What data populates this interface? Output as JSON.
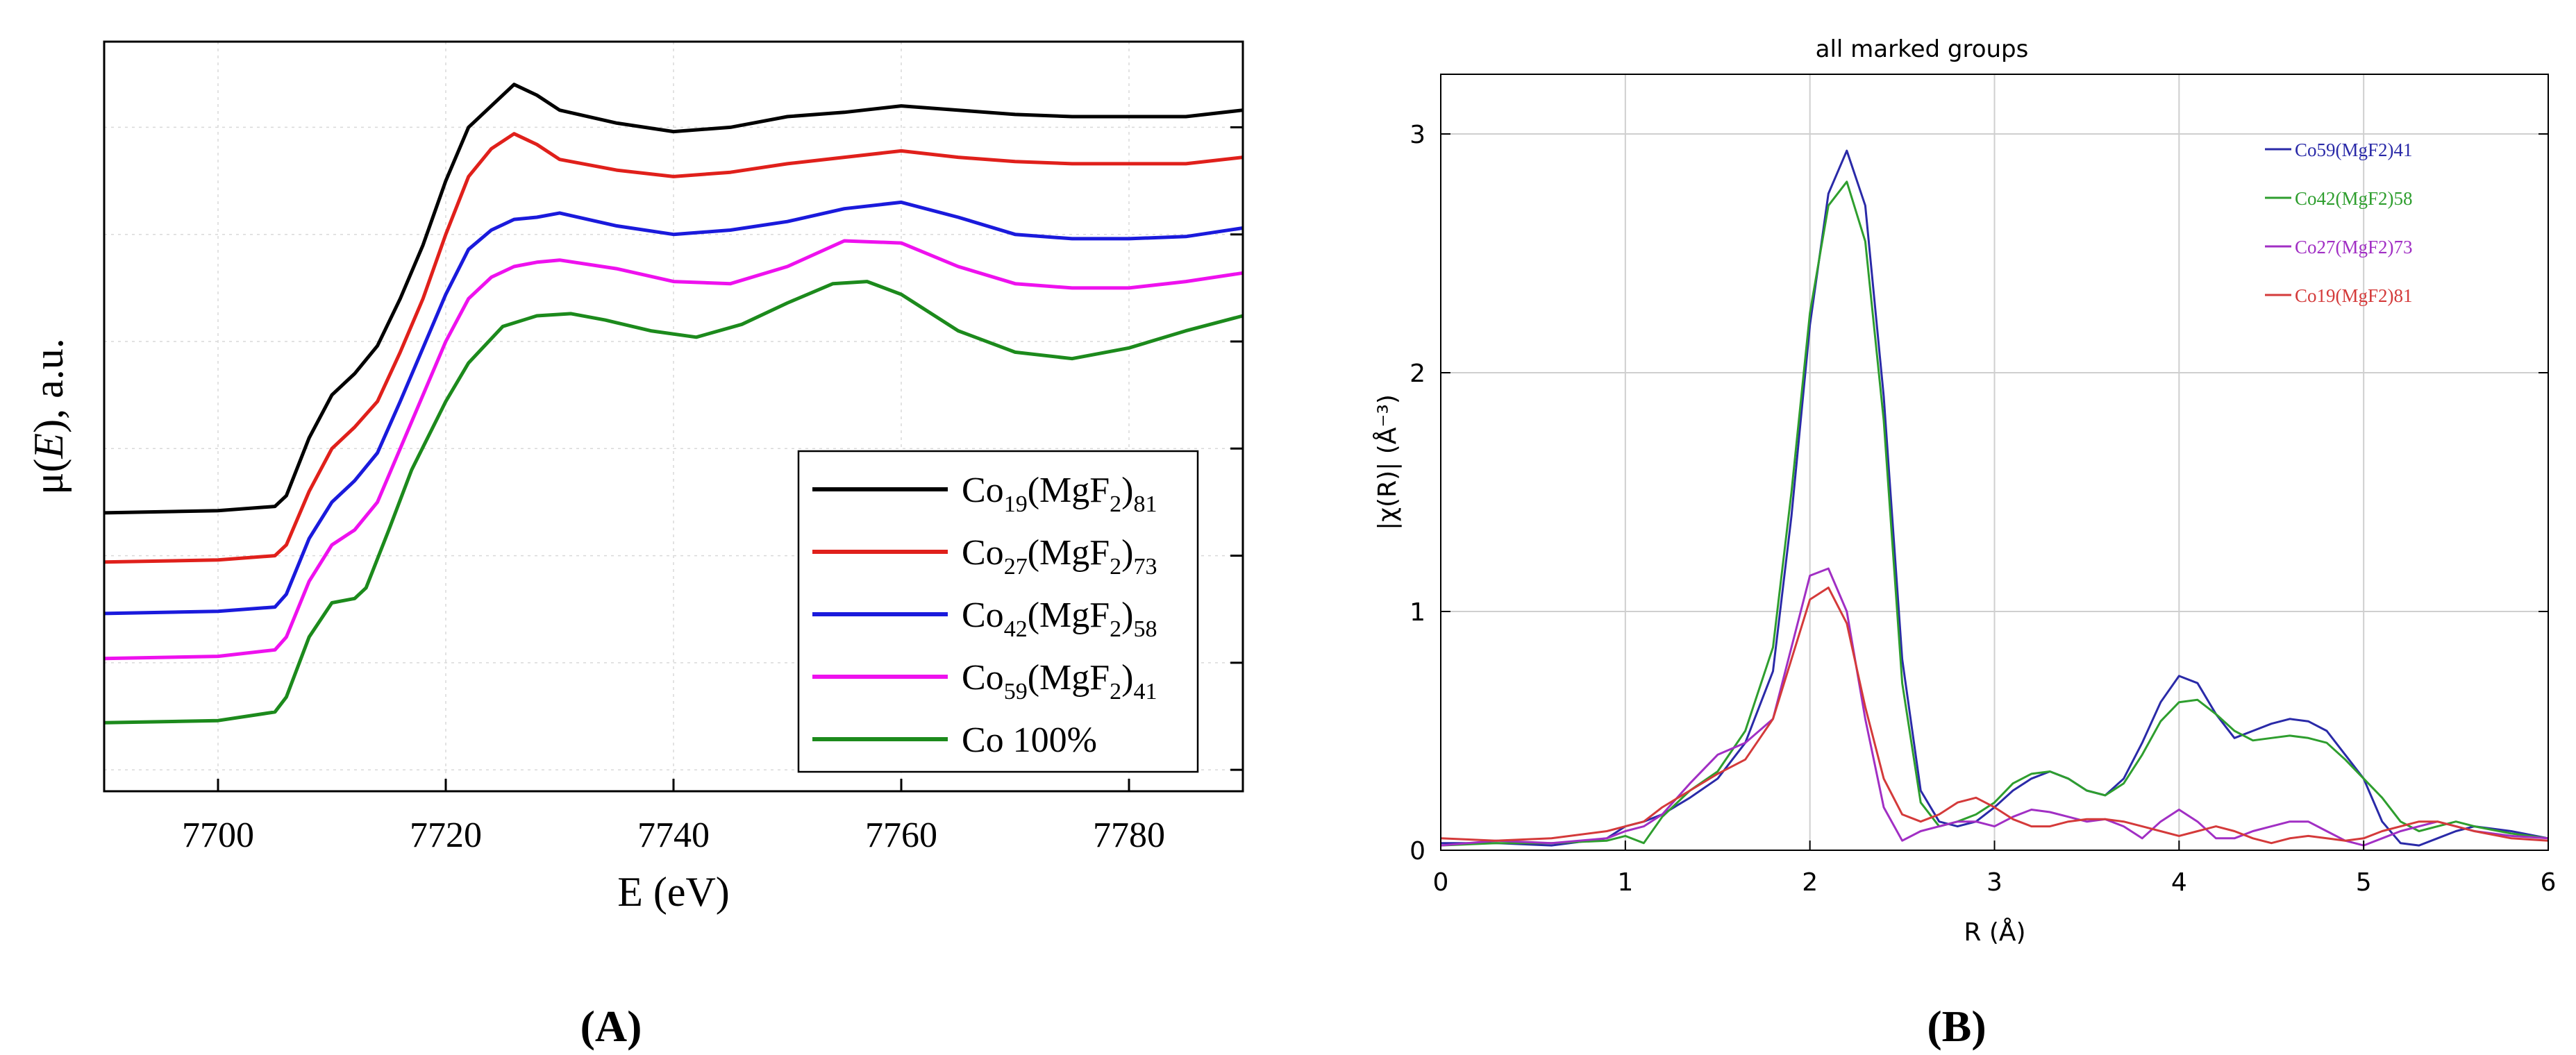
{
  "chart_data": [
    {
      "type": "line",
      "panel_label": "(A)",
      "panel_letter": "A",
      "title": "",
      "xlabel": "E (eV)",
      "ylabel_prefix": "μ(",
      "ylabel_italic": "E",
      "ylabel_suffix": "), a.u.",
      "xlim": [
        7690,
        7790
      ],
      "ylim": [
        -0.1,
        3.4
      ],
      "grid": true,
      "legend_position": "bottom-right",
      "x_ticks": [
        7700,
        7720,
        7740,
        7760,
        7780
      ],
      "x_tick_labels": [
        "7700",
        "7720",
        "7740",
        "7760",
        "7780"
      ],
      "y_ticks": [
        0.0,
        0.5,
        1.0,
        1.5,
        2.0,
        2.5,
        3.0
      ],
      "y_tick_labels": [
        "",
        "",
        "",
        "",
        "",
        "",
        ""
      ],
      "series": [
        {
          "name": "Co19(MgF2)81",
          "legend_base": "Co",
          "legend_sub1": "19",
          "legend_mid": "(MgF",
          "legend_sub2": "2",
          "legend_close": ")",
          "legend_sub3": "81",
          "color": "#000000",
          "x": [
            7690,
            7700,
            7705,
            7706,
            7708,
            7710,
            7712,
            7714,
            7716,
            7718,
            7720,
            7722,
            7724,
            7726,
            7728,
            7730,
            7735,
            7740,
            7745,
            7750,
            7755,
            7760,
            7765,
            7770,
            7775,
            7780,
            7785,
            7790
          ],
          "y": [
            1.2,
            1.21,
            1.23,
            1.28,
            1.55,
            1.75,
            1.85,
            1.98,
            2.2,
            2.45,
            2.75,
            3.0,
            3.1,
            3.2,
            3.15,
            3.08,
            3.02,
            2.98,
            3.0,
            3.05,
            3.07,
            3.1,
            3.08,
            3.06,
            3.05,
            3.05,
            3.05,
            3.08
          ]
        },
        {
          "name": "Co27(MgF2)73",
          "legend_base": "Co",
          "legend_sub1": "27",
          "legend_mid": "(MgF",
          "legend_sub2": "2",
          "legend_close": ")",
          "legend_sub3": "73",
          "color": "#e0201b",
          "x": [
            7690,
            7700,
            7705,
            7706,
            7708,
            7710,
            7712,
            7714,
            7716,
            7718,
            7720,
            7722,
            7724,
            7726,
            7728,
            7730,
            7735,
            7740,
            7745,
            7750,
            7755,
            7760,
            7765,
            7770,
            7775,
            7780,
            7785,
            7790
          ],
          "y": [
            0.97,
            0.98,
            1.0,
            1.05,
            1.3,
            1.5,
            1.6,
            1.72,
            1.95,
            2.2,
            2.5,
            2.77,
            2.9,
            2.97,
            2.92,
            2.85,
            2.8,
            2.77,
            2.79,
            2.83,
            2.86,
            2.89,
            2.86,
            2.84,
            2.83,
            2.83,
            2.83,
            2.86
          ]
        },
        {
          "name": "Co42(MgF2)58",
          "legend_base": "Co",
          "legend_sub1": "42",
          "legend_mid": "(MgF",
          "legend_sub2": "2",
          "legend_close": ")",
          "legend_sub3": "58",
          "color": "#1a1adc",
          "x": [
            7690,
            7700,
            7705,
            7706,
            7708,
            7710,
            7712,
            7714,
            7716,
            7718,
            7720,
            7722,
            7724,
            7726,
            7728,
            7730,
            7735,
            7740,
            7745,
            7750,
            7755,
            7760,
            7765,
            7770,
            7775,
            7780,
            7785,
            7790
          ],
          "y": [
            0.73,
            0.74,
            0.76,
            0.82,
            1.08,
            1.25,
            1.35,
            1.48,
            1.72,
            1.97,
            2.22,
            2.43,
            2.52,
            2.57,
            2.58,
            2.6,
            2.54,
            2.5,
            2.52,
            2.56,
            2.62,
            2.65,
            2.58,
            2.5,
            2.48,
            2.48,
            2.49,
            2.53
          ]
        },
        {
          "name": "Co59(MgF2)41",
          "legend_base": "Co",
          "legend_sub1": "59",
          "legend_mid": "(MgF",
          "legend_sub2": "2",
          "legend_close": ")",
          "legend_sub3": "41",
          "color": "#ee11ee",
          "x": [
            7690,
            7700,
            7705,
            7706,
            7708,
            7710,
            7712,
            7714,
            7716,
            7718,
            7720,
            7722,
            7724,
            7726,
            7728,
            7730,
            7735,
            7740,
            7745,
            7750,
            7755,
            7760,
            7765,
            7770,
            7775,
            7780,
            7785,
            7790
          ],
          "y": [
            0.52,
            0.53,
            0.56,
            0.62,
            0.88,
            1.05,
            1.12,
            1.25,
            1.5,
            1.75,
            2.0,
            2.2,
            2.3,
            2.35,
            2.37,
            2.38,
            2.34,
            2.28,
            2.27,
            2.35,
            2.47,
            2.46,
            2.35,
            2.27,
            2.25,
            2.25,
            2.28,
            2.32
          ]
        },
        {
          "name": "Co 100%",
          "legend_base": "Co 100%",
          "legend_sub1": "",
          "legend_mid": "",
          "legend_sub2": "",
          "legend_close": "",
          "legend_sub3": "",
          "color": "#1c8a1c",
          "x": [
            7690,
            7700,
            7705,
            7706,
            7708,
            7710,
            7712,
            7713,
            7715,
            7717,
            7720,
            7722,
            7725,
            7728,
            7731,
            7734,
            7738,
            7742,
            7746,
            7750,
            7754,
            7757,
            7760,
            7765,
            7770,
            7775,
            7780,
            7785,
            7790
          ],
          "y": [
            0.22,
            0.23,
            0.27,
            0.34,
            0.62,
            0.78,
            0.8,
            0.85,
            1.12,
            1.4,
            1.72,
            1.9,
            2.07,
            2.12,
            2.13,
            2.1,
            2.05,
            2.02,
            2.08,
            2.18,
            2.27,
            2.28,
            2.22,
            2.05,
            1.95,
            1.92,
            1.97,
            2.05,
            2.12
          ]
        }
      ]
    },
    {
      "type": "line",
      "panel_label": "(B)",
      "panel_letter": "B",
      "title": "all marked groups",
      "xlabel": "R (Å)",
      "ylabel": "|χ(R)| (Å⁻³)",
      "xlim": [
        0,
        6
      ],
      "ylim": [
        0,
        3.25
      ],
      "grid": true,
      "legend_position": "top-right",
      "x_ticks": [
        0,
        1,
        2,
        3,
        4,
        5,
        6
      ],
      "x_tick_labels": [
        "0",
        "1",
        "2",
        "3",
        "4",
        "5",
        "6"
      ],
      "y_ticks": [
        0,
        1,
        2,
        3
      ],
      "y_tick_labels": [
        "0",
        "1",
        "2",
        "3"
      ],
      "series": [
        {
          "name": "Co59(MgF2)41",
          "color": "#2a2aa8",
          "x": [
            0,
            0.3,
            0.6,
            0.9,
            1.0,
            1.1,
            1.2,
            1.35,
            1.5,
            1.65,
            1.8,
            1.9,
            2.0,
            2.1,
            2.2,
            2.3,
            2.4,
            2.5,
            2.6,
            2.7,
            2.8,
            2.9,
            3.0,
            3.1,
            3.2,
            3.3,
            3.4,
            3.5,
            3.6,
            3.7,
            3.8,
            3.9,
            4.0,
            4.1,
            4.2,
            4.3,
            4.4,
            4.5,
            4.6,
            4.7,
            4.8,
            4.9,
            5.0,
            5.1,
            5.2,
            5.3,
            5.4,
            5.5,
            5.6,
            5.8,
            6.0
          ],
          "y": [
            0.03,
            0.03,
            0.02,
            0.05,
            0.1,
            0.12,
            0.15,
            0.22,
            0.3,
            0.45,
            0.75,
            1.4,
            2.2,
            2.75,
            2.93,
            2.7,
            1.9,
            0.8,
            0.25,
            0.12,
            0.1,
            0.12,
            0.18,
            0.25,
            0.3,
            0.33,
            0.3,
            0.25,
            0.23,
            0.3,
            0.45,
            0.62,
            0.73,
            0.7,
            0.57,
            0.47,
            0.5,
            0.53,
            0.55,
            0.54,
            0.5,
            0.4,
            0.3,
            0.12,
            0.03,
            0.02,
            0.05,
            0.08,
            0.1,
            0.08,
            0.05
          ]
        },
        {
          "name": "Co42(MgF2)58",
          "color": "#2e9e2e",
          "x": [
            0,
            0.3,
            0.6,
            0.9,
            1.0,
            1.1,
            1.2,
            1.35,
            1.5,
            1.65,
            1.8,
            1.9,
            2.0,
            2.1,
            2.2,
            2.3,
            2.4,
            2.5,
            2.6,
            2.7,
            2.8,
            2.9,
            3.0,
            3.1,
            3.2,
            3.3,
            3.4,
            3.5,
            3.6,
            3.7,
            3.8,
            3.9,
            4.0,
            4.1,
            4.2,
            4.3,
            4.4,
            4.5,
            4.6,
            4.7,
            4.8,
            4.9,
            5.0,
            5.1,
            5.2,
            5.3,
            5.4,
            5.5,
            5.6,
            5.8,
            6.0
          ],
          "y": [
            0.02,
            0.03,
            0.03,
            0.04,
            0.06,
            0.03,
            0.14,
            0.25,
            0.33,
            0.5,
            0.85,
            1.5,
            2.25,
            2.7,
            2.8,
            2.55,
            1.8,
            0.7,
            0.2,
            0.1,
            0.12,
            0.15,
            0.2,
            0.28,
            0.32,
            0.33,
            0.3,
            0.25,
            0.23,
            0.28,
            0.4,
            0.54,
            0.62,
            0.63,
            0.57,
            0.5,
            0.46,
            0.47,
            0.48,
            0.47,
            0.45,
            0.38,
            0.3,
            0.22,
            0.12,
            0.08,
            0.1,
            0.12,
            0.1,
            0.07,
            0.05
          ]
        },
        {
          "name": "Co27(MgF2)73",
          "color": "#a12fc4",
          "x": [
            0,
            0.3,
            0.6,
            0.9,
            1.0,
            1.1,
            1.2,
            1.35,
            1.5,
            1.65,
            1.8,
            1.9,
            2.0,
            2.1,
            2.2,
            2.3,
            2.4,
            2.5,
            2.6,
            2.7,
            2.8,
            2.9,
            3.0,
            3.1,
            3.2,
            3.3,
            3.4,
            3.5,
            3.6,
            3.7,
            3.8,
            3.9,
            4.0,
            4.1,
            4.2,
            4.3,
            4.4,
            4.5,
            4.6,
            4.7,
            4.8,
            4.9,
            5.0,
            5.1,
            5.2,
            5.3,
            5.4,
            5.5,
            5.6,
            5.8,
            6.0
          ],
          "y": [
            0.02,
            0.04,
            0.03,
            0.05,
            0.08,
            0.1,
            0.15,
            0.28,
            0.4,
            0.45,
            0.55,
            0.85,
            1.15,
            1.18,
            1.0,
            0.55,
            0.18,
            0.04,
            0.08,
            0.1,
            0.12,
            0.12,
            0.1,
            0.14,
            0.17,
            0.16,
            0.14,
            0.12,
            0.13,
            0.1,
            0.05,
            0.12,
            0.17,
            0.12,
            0.05,
            0.05,
            0.08,
            0.1,
            0.12,
            0.12,
            0.08,
            0.04,
            0.02,
            0.05,
            0.08,
            0.1,
            0.12,
            0.1,
            0.08,
            0.06,
            0.05
          ]
        },
        {
          "name": "Co19(MgF2)81",
          "color": "#d43a3a",
          "x": [
            0,
            0.3,
            0.6,
            0.9,
            1.0,
            1.1,
            1.2,
            1.35,
            1.5,
            1.65,
            1.8,
            1.9,
            2.0,
            2.1,
            2.2,
            2.3,
            2.4,
            2.5,
            2.6,
            2.7,
            2.8,
            2.9,
            3.0,
            3.1,
            3.2,
            3.3,
            3.4,
            3.5,
            3.6,
            3.7,
            3.8,
            3.9,
            4.0,
            4.1,
            4.2,
            4.3,
            4.4,
            4.5,
            4.6,
            4.7,
            4.8,
            4.9,
            5.0,
            5.1,
            5.2,
            5.3,
            5.4,
            5.5,
            5.6,
            5.8,
            6.0
          ],
          "y": [
            0.05,
            0.04,
            0.05,
            0.08,
            0.1,
            0.12,
            0.18,
            0.25,
            0.32,
            0.38,
            0.55,
            0.8,
            1.05,
            1.1,
            0.95,
            0.6,
            0.3,
            0.15,
            0.12,
            0.15,
            0.2,
            0.22,
            0.18,
            0.13,
            0.1,
            0.1,
            0.12,
            0.13,
            0.13,
            0.12,
            0.1,
            0.08,
            0.06,
            0.08,
            0.1,
            0.08,
            0.05,
            0.03,
            0.05,
            0.06,
            0.05,
            0.04,
            0.05,
            0.08,
            0.1,
            0.12,
            0.12,
            0.1,
            0.08,
            0.05,
            0.04
          ]
        }
      ]
    }
  ]
}
